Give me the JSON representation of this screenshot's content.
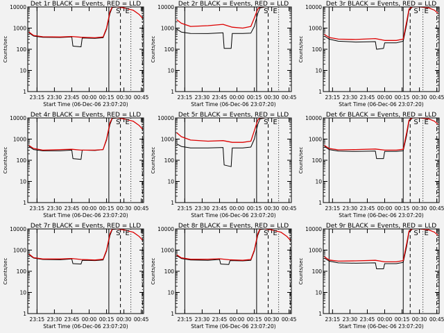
{
  "figure": {
    "background": "#f2f2f2"
  },
  "colors": {
    "events": "#000000",
    "lld": "#dd0000",
    "axis": "#000000"
  },
  "common": {
    "xlabel": "Start Time (06-Dec-06 23:07:20)",
    "ylabel": "Counts/sec",
    "xtick_labels": [
      "23:15",
      "23:30",
      "23:45",
      "00:00",
      "00:15",
      "00:30",
      "00:45"
    ],
    "ytick_labels": [
      "1",
      "10",
      "100",
      "1000",
      "10000"
    ],
    "scale": "log"
  },
  "chart_data": [
    {
      "type": "line",
      "title": "Det 1r BLACK = Events, RED = LLD",
      "xlabel": "Start Time (06-Dec-06 23:07:20)",
      "ylabel": "Counts/sec",
      "x_range": [
        "23:07",
        "00:47"
      ],
      "ylim": [
        1,
        10000
      ],
      "ylog": true,
      "mode_letters": [
        {
          "time": "00:25",
          "label": "S"
        },
        {
          "time": "00:33",
          "label": "E"
        }
      ],
      "series": [
        {
          "name": "BLACK = Events",
          "times": [
            "23:08",
            "23:12",
            "23:20",
            "23:35",
            "23:45",
            "23:46",
            "23:53",
            "23:54",
            "00:05",
            "00:12",
            "00:15",
            "00:18",
            "00:20",
            "00:24"
          ],
          "values": [
            600,
            420,
            370,
            360,
            380,
            140,
            130,
            340,
            330,
            350,
            900,
            5000,
            9500,
            10000
          ]
        },
        {
          "name": "RED = LLD",
          "times": [
            "23:08",
            "23:12",
            "23:20",
            "23:35",
            "23:45",
            "23:53",
            "00:05",
            "00:12",
            "00:15",
            "00:18",
            "00:20",
            "00:24",
            "00:30",
            "00:38",
            "00:43",
            "00:46"
          ],
          "values": [
            650,
            450,
            390,
            380,
            400,
            370,
            350,
            380,
            1000,
            6000,
            10000,
            10000,
            9000,
            7000,
            4500,
            3000
          ]
        }
      ],
      "markers": {
        "solid": [
          "23:15",
          "00:17"
        ],
        "dashed": [
          "00:27"
        ],
        "dotted": [
          "00:36"
        ],
        "dashdot": [
          "00:46"
        ]
      }
    },
    {
      "type": "line",
      "title": "Det 2r BLACK = Events, RED = LLD",
      "xlabel": "Start Time (06-Dec-06 23:07:20)",
      "ylabel": "Counts/sec",
      "x_range": [
        "23:07",
        "00:47"
      ],
      "ylim": [
        1,
        10000
      ],
      "ylog": true,
      "mode_letters": [
        {
          "time": "00:25",
          "label": "S"
        },
        {
          "time": "00:33",
          "label": "E"
        }
      ],
      "series": [
        {
          "name": "BLACK = Events",
          "times": [
            "23:08",
            "23:12",
            "23:20",
            "23:35",
            "23:48",
            "23:49",
            "23:55",
            "23:56",
            "00:05",
            "00:12",
            "00:15",
            "00:18",
            "00:20",
            "00:24"
          ],
          "values": [
            900,
            650,
            560,
            550,
            600,
            110,
            110,
            560,
            560,
            580,
            1200,
            5000,
            9000,
            10000
          ]
        },
        {
          "name": "RED = LLD",
          "times": [
            "23:08",
            "23:12",
            "23:20",
            "23:35",
            "23:48",
            "23:56",
            "00:05",
            "00:12",
            "00:15",
            "00:18",
            "00:20",
            "00:24"
          ],
          "values": [
            2500,
            1700,
            1200,
            1300,
            1500,
            1100,
            1000,
            1200,
            3000,
            8000,
            10000,
            10000
          ]
        }
      ],
      "markers": {
        "solid": [
          "23:15",
          "00:17"
        ],
        "dashed": [
          "00:27"
        ],
        "dotted": [
          "00:36"
        ],
        "dashdot": []
      }
    },
    {
      "type": "line",
      "title": "Det 3r BLACK = Events, RED = LLD",
      "xlabel": "Start Time (06-Dec-06 23:07:20)",
      "ylabel": "Counts/sec",
      "x_range": [
        "23:07",
        "00:47"
      ],
      "ylim": [
        1,
        10000
      ],
      "ylog": true,
      "mode_letters": [
        {
          "time": "00:27",
          "label": "S"
        },
        {
          "time": "00:36",
          "label": "E"
        }
      ],
      "series": [
        {
          "name": "BLACK = Events",
          "times": [
            "23:08",
            "23:12",
            "23:20",
            "23:35",
            "23:52",
            "23:53",
            "23:59",
            "00:00",
            "00:10",
            "00:16",
            "00:19",
            "00:21",
            "00:24"
          ],
          "values": [
            420,
            300,
            240,
            220,
            230,
            100,
            110,
            200,
            200,
            240,
            1500,
            7000,
            10000
          ]
        },
        {
          "name": "RED = LLD",
          "times": [
            "23:08",
            "23:12",
            "23:20",
            "23:35",
            "23:52",
            "00:00",
            "00:10",
            "00:16",
            "00:19",
            "00:21",
            "00:24",
            "00:30",
            "00:38",
            "00:43",
            "00:46"
          ],
          "values": [
            500,
            360,
            300,
            290,
            320,
            260,
            260,
            300,
            2000,
            8000,
            10000,
            10000,
            9000,
            7000,
            5000
          ]
        }
      ],
      "markers": {
        "solid": [
          "23:12",
          "00:16"
        ],
        "dashed": [
          "00:22"
        ],
        "dotted": [
          "00:33"
        ],
        "dashdot": [
          "00:45"
        ]
      }
    },
    {
      "type": "line",
      "title": "Det 4r BLACK = Events, RED = LLD",
      "xlabel": "Start Time (06-Dec-06 23:07:20)",
      "ylabel": "Counts/sec",
      "x_range": [
        "23:07",
        "00:47"
      ],
      "ylim": [
        1,
        10000
      ],
      "ylog": true,
      "mode_letters": [
        {
          "time": "00:25",
          "label": "S"
        },
        {
          "time": "00:33",
          "label": "E"
        }
      ],
      "series": [
        {
          "name": "BLACK = Events",
          "times": [
            "23:08",
            "23:12",
            "23:20",
            "23:35",
            "23:45",
            "23:46",
            "23:53",
            "23:54",
            "00:05",
            "00:12",
            "00:15",
            "00:18",
            "00:20",
            "00:24"
          ],
          "values": [
            450,
            320,
            280,
            280,
            300,
            120,
            110,
            300,
            290,
            320,
            900,
            5000,
            9500,
            10000
          ]
        },
        {
          "name": "RED = LLD",
          "times": [
            "23:08",
            "23:12",
            "23:20",
            "23:35",
            "23:45",
            "23:53",
            "00:05",
            "00:12",
            "00:15",
            "00:18",
            "00:20",
            "00:24",
            "00:30",
            "00:38",
            "00:43",
            "00:46"
          ],
          "values": [
            500,
            360,
            300,
            320,
            330,
            300,
            300,
            320,
            1000,
            6000,
            10000,
            10000,
            9000,
            7000,
            4500,
            3000
          ]
        }
      ],
      "markers": {
        "solid": [
          "23:15",
          "00:17"
        ],
        "dashed": [
          "00:27"
        ],
        "dotted": [
          "00:36"
        ],
        "dashdot": [
          "00:46"
        ]
      }
    },
    {
      "type": "line",
      "title": "Det 5r BLACK = Events, RED = LLD",
      "xlabel": "Start Time (06-Dec-06 23:07:20)",
      "ylabel": "Counts/sec",
      "x_range": [
        "23:07",
        "00:47"
      ],
      "ylim": [
        1,
        10000
      ],
      "ylog": true,
      "mode_letters": [
        {
          "time": "00:25",
          "label": "S"
        },
        {
          "time": "00:33",
          "label": "E"
        }
      ],
      "series": [
        {
          "name": "BLACK = Events",
          "times": [
            "23:08",
            "23:12",
            "23:20",
            "23:35",
            "23:48",
            "23:49",
            "23:55",
            "23:56",
            "00:05",
            "00:12",
            "00:15",
            "00:18",
            "00:20",
            "00:24"
          ],
          "values": [
            600,
            450,
            380,
            380,
            400,
            60,
            50,
            380,
            380,
            420,
            1000,
            5000,
            9000,
            10000
          ]
        },
        {
          "name": "RED = LLD",
          "times": [
            "23:08",
            "23:12",
            "23:20",
            "23:35",
            "23:48",
            "23:56",
            "00:05",
            "00:12",
            "00:15",
            "00:18",
            "00:20",
            "00:24"
          ],
          "values": [
            2000,
            1300,
            900,
            800,
            850,
            700,
            700,
            800,
            2500,
            8000,
            10000,
            10000
          ]
        }
      ],
      "markers": {
        "solid": [
          "23:15",
          "00:17"
        ],
        "dashed": [
          "00:27"
        ],
        "dotted": [
          "00:36"
        ],
        "dashdot": []
      }
    },
    {
      "type": "line",
      "title": "Det 6r BLACK = Events, RED = LLD",
      "xlabel": "Start Time (06-Dec-06 23:07:20)",
      "ylabel": "Counts/sec",
      "x_range": [
        "23:07",
        "00:47"
      ],
      "ylim": [
        1,
        10000
      ],
      "ylog": true,
      "mode_letters": [
        {
          "time": "00:27",
          "label": "S"
        },
        {
          "time": "00:36",
          "label": "E"
        }
      ],
      "series": [
        {
          "name": "BLACK = Events",
          "times": [
            "23:08",
            "23:12",
            "23:20",
            "23:35",
            "23:52",
            "23:53",
            "23:59",
            "00:00",
            "00:10",
            "00:16",
            "00:19",
            "00:21",
            "00:24"
          ],
          "values": [
            450,
            320,
            270,
            260,
            270,
            120,
            120,
            260,
            260,
            280,
            1500,
            7000,
            10000
          ]
        },
        {
          "name": "RED = LLD",
          "times": [
            "23:08",
            "23:12",
            "23:20",
            "23:35",
            "23:52",
            "00:00",
            "00:10",
            "00:16",
            "00:19",
            "00:21",
            "00:24",
            "00:30",
            "00:38",
            "00:43",
            "00:46"
          ],
          "values": [
            500,
            360,
            310,
            320,
            340,
            300,
            300,
            330,
            2000,
            8000,
            10000,
            10000,
            9000,
            7000,
            5000
          ]
        }
      ],
      "markers": {
        "solid": [
          "23:12",
          "00:16"
        ],
        "dashed": [
          "00:22"
        ],
        "dotted": [
          "00:33"
        ],
        "dashdot": [
          "00:45"
        ]
      }
    },
    {
      "type": "line",
      "title": "Det 7r BLACK = Events, RED = LLD",
      "xlabel": "Start Time (06-Dec-06 23:07:20)",
      "ylabel": "Counts/sec",
      "x_range": [
        "23:07",
        "00:47"
      ],
      "ylim": [
        1,
        10000
      ],
      "ylog": true,
      "mode_letters": [
        {
          "time": "00:25",
          "label": "S"
        },
        {
          "time": "00:33",
          "label": "E"
        }
      ],
      "series": [
        {
          "name": "BLACK = Events",
          "times": [
            "23:08",
            "23:12",
            "23:20",
            "23:35",
            "23:45",
            "23:46",
            "23:53",
            "23:54",
            "00:05",
            "00:12",
            "00:15",
            "00:18",
            "00:20",
            "00:24"
          ],
          "values": [
            600,
            420,
            360,
            350,
            380,
            230,
            220,
            330,
            320,
            340,
            900,
            5000,
            9500,
            10000
          ]
        },
        {
          "name": "RED = LLD",
          "times": [
            "23:08",
            "23:12",
            "23:20",
            "23:35",
            "23:45",
            "23:53",
            "00:05",
            "00:12",
            "00:15",
            "00:18",
            "00:20",
            "00:24",
            "00:30",
            "00:38",
            "00:43",
            "00:46"
          ],
          "values": [
            650,
            440,
            380,
            380,
            400,
            360,
            340,
            370,
            1000,
            6000,
            10000,
            10000,
            9000,
            7000,
            4500,
            3000
          ]
        }
      ],
      "markers": {
        "solid": [
          "23:15",
          "00:17"
        ],
        "dashed": [
          "00:27"
        ],
        "dotted": [
          "00:36"
        ],
        "dashdot": [
          "00:46"
        ]
      }
    },
    {
      "type": "line",
      "title": "Det 8r BLACK = Events, RED = LLD",
      "xlabel": "Start Time (06-Dec-06 23:07:20)",
      "ylabel": "Counts/sec",
      "x_range": [
        "23:07",
        "00:47"
      ],
      "ylim": [
        1,
        10000
      ],
      "ylog": true,
      "mode_letters": [
        {
          "time": "00:25",
          "label": "S"
        },
        {
          "time": "00:33",
          "label": "E"
        }
      ],
      "series": [
        {
          "name": "BLACK = Events",
          "times": [
            "23:08",
            "23:12",
            "23:20",
            "23:35",
            "23:45",
            "23:46",
            "23:53",
            "23:54",
            "00:05",
            "00:12",
            "00:15",
            "00:18",
            "00:20",
            "00:24"
          ],
          "values": [
            550,
            400,
            340,
            330,
            360,
            220,
            210,
            320,
            310,
            330,
            900,
            5000,
            9500,
            10000
          ]
        },
        {
          "name": "RED = LLD",
          "times": [
            "23:08",
            "23:12",
            "23:20",
            "23:35",
            "23:45",
            "23:53",
            "00:05",
            "00:12",
            "00:15",
            "00:18",
            "00:20",
            "00:24",
            "00:30",
            "00:38",
            "00:43",
            "00:46"
          ],
          "values": [
            600,
            430,
            370,
            370,
            390,
            350,
            330,
            360,
            1000,
            6000,
            10000,
            10000,
            9000,
            7000,
            4500,
            3000
          ]
        }
      ],
      "markers": {
        "solid": [
          "23:15",
          "00:17"
        ],
        "dashed": [
          "00:27"
        ],
        "dotted": [
          "00:36"
        ],
        "dashdot": [
          "00:46"
        ]
      }
    },
    {
      "type": "line",
      "title": "Det 9r BLACK = Events, RED = LLD",
      "xlabel": "Start Time (06-Dec-06 23:07:20)",
      "ylabel": "Counts/sec",
      "x_range": [
        "23:07",
        "00:47"
      ],
      "ylim": [
        1,
        10000
      ],
      "ylog": true,
      "mode_letters": [
        {
          "time": "00:27",
          "label": "S"
        },
        {
          "time": "00:36",
          "label": "E"
        }
      ],
      "series": [
        {
          "name": "BLACK = Events",
          "times": [
            "23:08",
            "23:12",
            "23:20",
            "23:35",
            "23:52",
            "23:53",
            "23:59",
            "00:00",
            "00:10",
            "00:16",
            "00:19",
            "00:21",
            "00:24"
          ],
          "values": [
            420,
            300,
            250,
            240,
            250,
            130,
            130,
            230,
            230,
            260,
            1500,
            7000,
            10000
          ]
        },
        {
          "name": "RED = LLD",
          "times": [
            "23:08",
            "23:12",
            "23:20",
            "23:35",
            "23:52",
            "00:00",
            "00:10",
            "00:16",
            "00:19",
            "00:21",
            "00:24",
            "00:30",
            "00:38",
            "00:43",
            "00:46"
          ],
          "values": [
            480,
            340,
            300,
            310,
            330,
            280,
            280,
            320,
            2000,
            8000,
            10000,
            10000,
            9000,
            7000,
            5000
          ]
        }
      ],
      "markers": {
        "solid": [
          "23:12",
          "00:16"
        ],
        "dashed": [
          "00:22"
        ],
        "dotted": [
          "00:33"
        ],
        "dashdot": [
          "00:45"
        ]
      }
    }
  ]
}
